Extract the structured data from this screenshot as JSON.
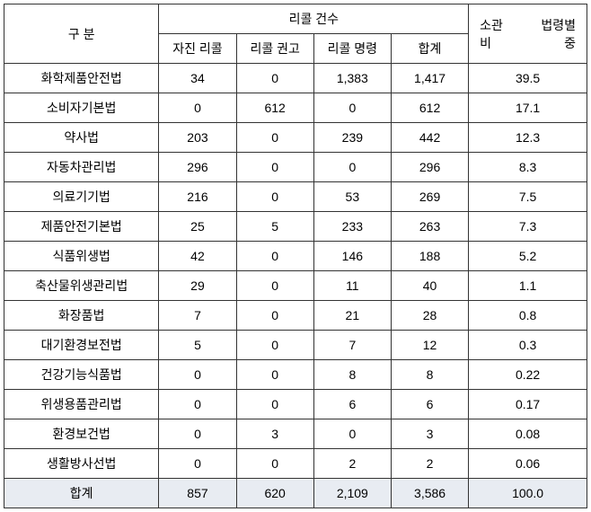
{
  "header": {
    "category_label": "구 분",
    "recall_count_label": "리콜 건수",
    "voluntary_label": "자진 리콜",
    "advisory_label": "리콜 권고",
    "order_label": "리콜 명령",
    "subtotal_label": "합계",
    "weight_top_1": "소관",
    "weight_top_2": "법령별",
    "weight_bottom_1": "비",
    "weight_bottom_2": "중"
  },
  "rows": [
    {
      "name": "화학제품안전법",
      "voluntary": "34",
      "advisory": "0",
      "order": "1,383",
      "subtotal": "1,417",
      "weight": "39.5"
    },
    {
      "name": "소비자기본법",
      "voluntary": "0",
      "advisory": "612",
      "order": "0",
      "subtotal": "612",
      "weight": "17.1"
    },
    {
      "name": "약사법",
      "voluntary": "203",
      "advisory": "0",
      "order": "239",
      "subtotal": "442",
      "weight": "12.3"
    },
    {
      "name": "자동차관리법",
      "voluntary": "296",
      "advisory": "0",
      "order": "0",
      "subtotal": "296",
      "weight": "8.3"
    },
    {
      "name": "의료기기법",
      "voluntary": "216",
      "advisory": "0",
      "order": "53",
      "subtotal": "269",
      "weight": "7.5"
    },
    {
      "name": "제품안전기본법",
      "voluntary": "25",
      "advisory": "5",
      "order": "233",
      "subtotal": "263",
      "weight": "7.3"
    },
    {
      "name": "식품위생법",
      "voluntary": "42",
      "advisory": "0",
      "order": "146",
      "subtotal": "188",
      "weight": "5.2"
    },
    {
      "name": "축산물위생관리법",
      "voluntary": "29",
      "advisory": "0",
      "order": "11",
      "subtotal": "40",
      "weight": "1.1"
    },
    {
      "name": "화장품법",
      "voluntary": "7",
      "advisory": "0",
      "order": "21",
      "subtotal": "28",
      "weight": "0.8"
    },
    {
      "name": "대기환경보전법",
      "voluntary": "5",
      "advisory": "0",
      "order": "7",
      "subtotal": "12",
      "weight": "0.3"
    },
    {
      "name": "건강기능식품법",
      "voluntary": "0",
      "advisory": "0",
      "order": "8",
      "subtotal": "8",
      "weight": "0.22"
    },
    {
      "name": "위생용품관리법",
      "voluntary": "0",
      "advisory": "0",
      "order": "6",
      "subtotal": "6",
      "weight": "0.17"
    },
    {
      "name": "환경보건법",
      "voluntary": "0",
      "advisory": "3",
      "order": "0",
      "subtotal": "3",
      "weight": "0.08"
    },
    {
      "name": "생활방사선법",
      "voluntary": "0",
      "advisory": "0",
      "order": "2",
      "subtotal": "2",
      "weight": "0.06"
    }
  ],
  "total": {
    "label": "합계",
    "voluntary": "857",
    "advisory": "620",
    "order": "2,109",
    "subtotal": "3,586",
    "weight": "100.0"
  },
  "style": {
    "border_color": "#333333",
    "total_bg": "#e8ecf2",
    "font_size": 14
  }
}
